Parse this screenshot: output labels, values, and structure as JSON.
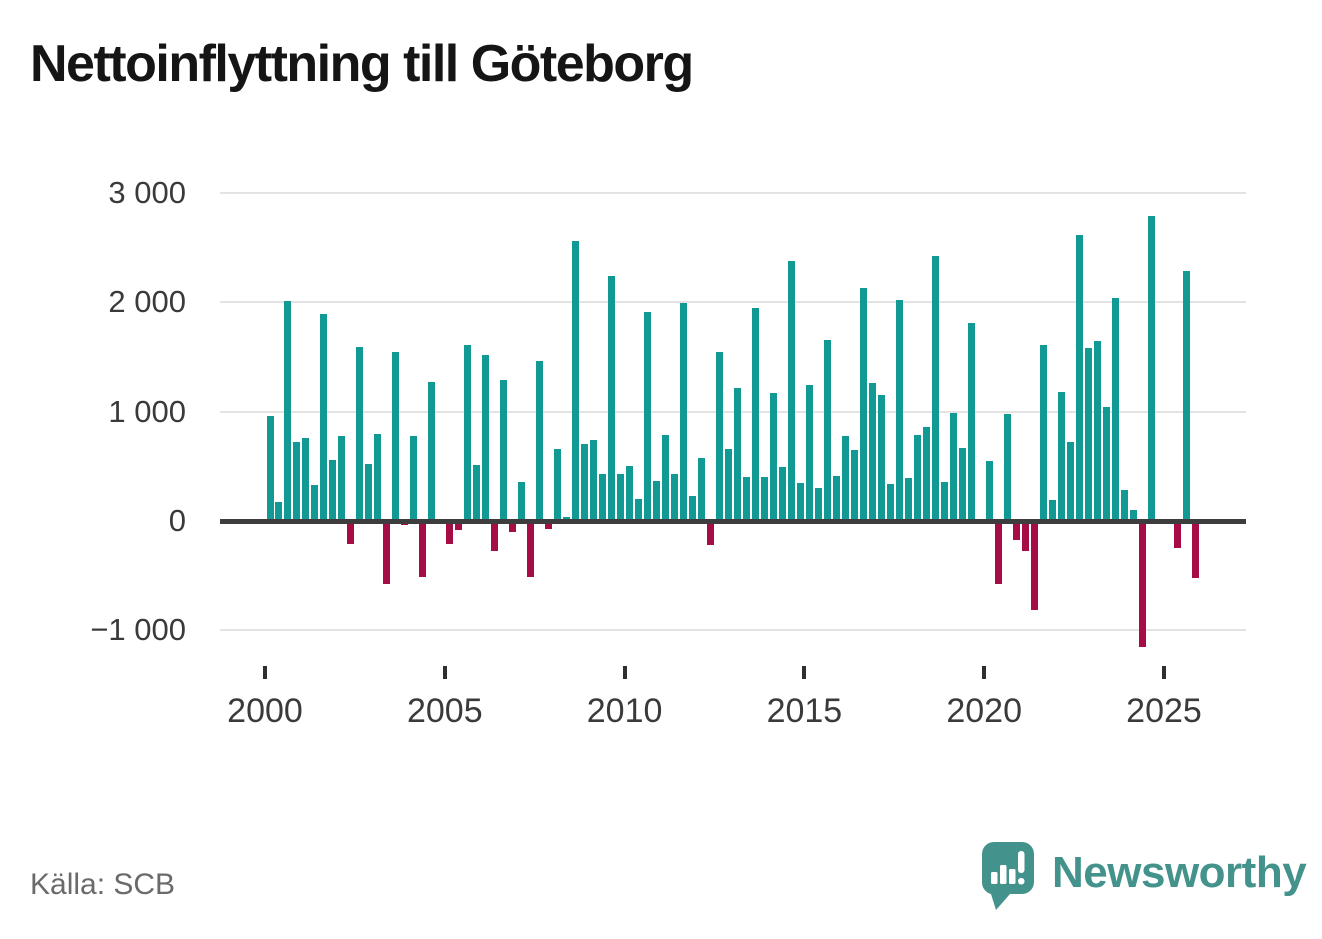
{
  "title": "Nettoinflyttning till Göteborg",
  "source": "Källa: SCB",
  "branding": {
    "name": "Newsworthy",
    "icon": "newsworthy-speech-bubble-bar-chart-icon"
  },
  "colors": {
    "positive_bar": "#119a94",
    "negative_bar": "#a60c45",
    "grid": "#e3e3e3",
    "axis": "#3d3d3d",
    "title_text": "#151515",
    "tick_text": "#3a3a3a",
    "muted_text": "#6a6a6a",
    "brand_teal": "#43928c"
  },
  "chart_data": {
    "type": "bar",
    "title": "Nettoinflyttning till Göteborg",
    "xlabel": "",
    "ylabel": "",
    "x_unit": "quarter",
    "grid": true,
    "legend": false,
    "ylim": [
      -1200,
      3000
    ],
    "yticks": [
      3000,
      2000,
      1000,
      0,
      -1000
    ],
    "ytick_labels": [
      "3 000",
      "2 000",
      "1 000",
      "0",
      "−1 000"
    ],
    "xtick_years": [
      "2000",
      "2005",
      "2010",
      "2015",
      "2020",
      "2025"
    ],
    "categories": [
      "2000 Q1",
      "2000 Q2",
      "2000 Q3",
      "2000 Q4",
      "2001 Q1",
      "2001 Q2",
      "2001 Q3",
      "2001 Q4",
      "2002 Q1",
      "2002 Q2",
      "2002 Q3",
      "2002 Q4",
      "2003 Q1",
      "2003 Q2",
      "2003 Q3",
      "2003 Q4",
      "2004 Q1",
      "2004 Q2",
      "2004 Q3",
      "2004 Q4",
      "2005 Q1",
      "2005 Q2",
      "2005 Q3",
      "2005 Q4",
      "2006 Q1",
      "2006 Q2",
      "2006 Q3",
      "2006 Q4",
      "2007 Q1",
      "2007 Q2",
      "2007 Q3",
      "2007 Q4",
      "2008 Q1",
      "2008 Q2",
      "2008 Q3",
      "2008 Q4",
      "2009 Q1",
      "2009 Q2",
      "2009 Q3",
      "2009 Q4",
      "2010 Q1",
      "2010 Q2",
      "2010 Q3",
      "2010 Q4",
      "2011 Q1",
      "2011 Q2",
      "2011 Q3",
      "2011 Q4",
      "2012 Q1",
      "2012 Q2",
      "2012 Q3",
      "2012 Q4",
      "2013 Q1",
      "2013 Q2",
      "2013 Q3",
      "2013 Q4",
      "2014 Q1",
      "2014 Q2",
      "2014 Q3",
      "2014 Q4",
      "2015 Q1",
      "2015 Q2",
      "2015 Q3",
      "2015 Q4",
      "2016 Q1",
      "2016 Q2",
      "2016 Q3",
      "2016 Q4",
      "2017 Q1",
      "2017 Q2",
      "2017 Q3",
      "2017 Q4",
      "2018 Q1",
      "2018 Q2",
      "2018 Q3",
      "2018 Q4",
      "2019 Q1",
      "2019 Q2",
      "2019 Q3",
      "2019 Q4",
      "2020 Q1",
      "2020 Q2",
      "2020 Q3",
      "2020 Q4",
      "2021 Q1",
      "2021 Q2",
      "2021 Q3",
      "2021 Q4",
      "2022 Q1",
      "2022 Q2",
      "2022 Q3",
      "2022 Q4",
      "2023 Q1",
      "2023 Q2",
      "2023 Q3",
      "2023 Q4",
      "2024 Q1",
      "2024 Q2",
      "2024 Q3",
      "2024 Q4",
      "2025 Q1",
      "2025 Q2",
      "2025 Q3",
      "2025 Q4"
    ],
    "values": [
      960,
      170,
      2010,
      720,
      760,
      330,
      1890,
      560,
      780,
      -210,
      1590,
      520,
      800,
      -580,
      1550,
      -40,
      780,
      -510,
      1270,
      0,
      -210,
      -80,
      1610,
      510,
      1520,
      -270,
      1290,
      -100,
      360,
      -510,
      1460,
      -70,
      660,
      40,
      2560,
      700,
      740,
      430,
      2240,
      430,
      500,
      200,
      1910,
      370,
      790,
      430,
      1990,
      230,
      580,
      -220,
      1550,
      660,
      1220,
      400,
      1950,
      400,
      1170,
      490,
      2380,
      350,
      1240,
      300,
      1660,
      410,
      780,
      650,
      2130,
      1260,
      1150,
      340,
      2020,
      390,
      790,
      860,
      2420,
      360,
      990,
      670,
      1810,
      0,
      550,
      -580,
      980,
      -170,
      -270,
      -810,
      1610,
      190,
      1180,
      720,
      2620,
      1580,
      1650,
      1040,
      2040,
      280,
      100,
      -1150,
      2790,
      0,
      0,
      -250,
      2290,
      -520
    ]
  }
}
